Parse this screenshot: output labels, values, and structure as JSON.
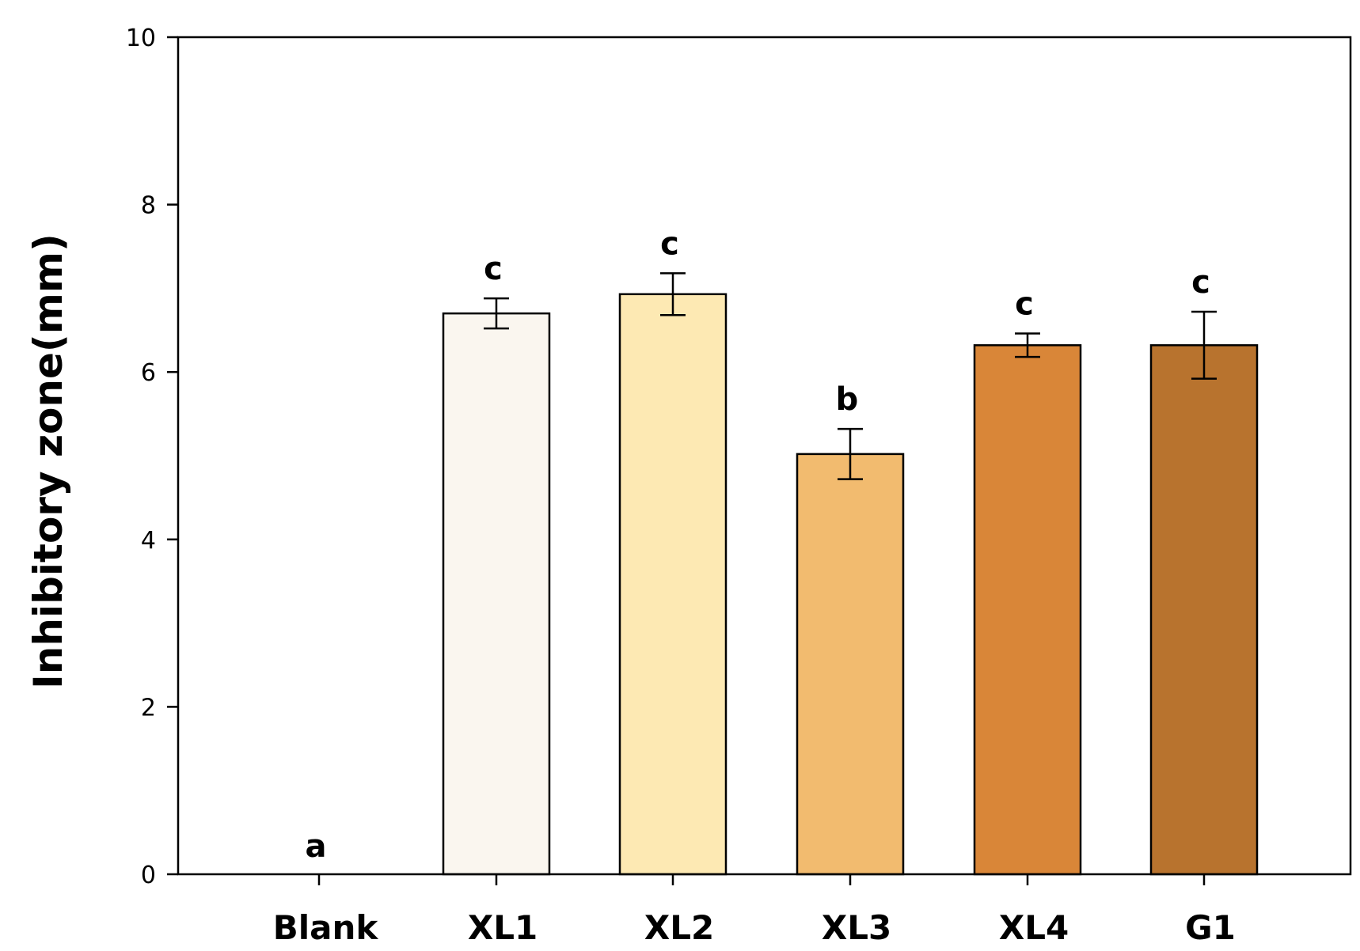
{
  "chart_data": {
    "type": "bar",
    "title": "",
    "xlabel": "",
    "ylabel": "Inhibitory zone(mm)",
    "ylim": [
      0,
      10
    ],
    "yticks": [
      "0",
      "2",
      "4",
      "6",
      "8",
      "10"
    ],
    "categories": [
      "Blank",
      "XL1",
      "XL2",
      "XL3",
      "XL4",
      "G1"
    ],
    "values": [
      0,
      6.7,
      6.93,
      5.02,
      6.32,
      6.32
    ],
    "errors": [
      0,
      0.18,
      0.25,
      0.3,
      0.14,
      0.4
    ],
    "significance": [
      "a",
      "c",
      "c",
      "b",
      "c",
      "c"
    ],
    "colors": [
      "#ffffff",
      "#faf6ef",
      "#fde9b3",
      "#f2bb6f",
      "#d98638",
      "#b8732e"
    ],
    "grid": false,
    "legend": "none"
  }
}
